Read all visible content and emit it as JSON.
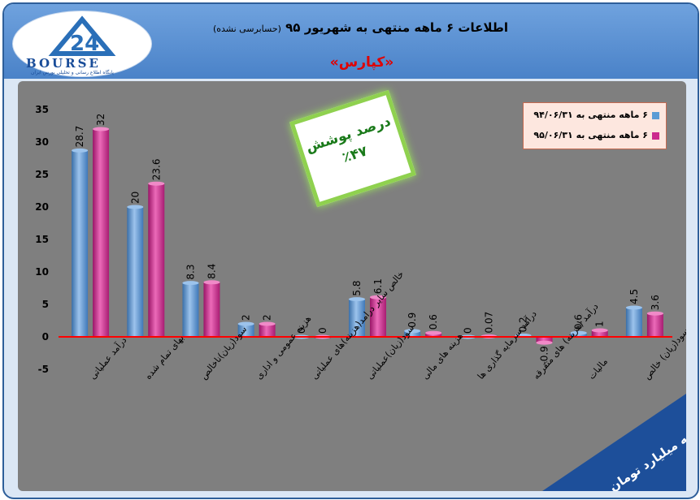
{
  "header": {
    "title": "اطلاعات ۶ ماهه منتهی به شهریور ۹۵",
    "title_note": "(حسابرسی نشده)",
    "subtitle": "«کپارس»"
  },
  "logo": {
    "text": "BOURSE",
    "tagline": "پایگاه اطلاع رسانی و تحلیلی بورس ایران"
  },
  "coverage": {
    "label": "درصد پوشش",
    "value": "٪۴۷"
  },
  "unit_note": "ارقام به میلیارد تومان",
  "colors": {
    "series1": "#5b9bd5",
    "series2": "#cc2a8e",
    "zero_line": "#ff0000",
    "plot_bg": "#7f7f7f"
  },
  "chart_data": {
    "type": "bar",
    "categories": [
      "درآمد عملیاتی",
      "بهای تمام شده",
      "سود(زیان)ناخالص",
      "هزینه عمومی و اداری",
      "خالص سایر درامد(هزینه)های عملیاتی",
      "سود(زیان)عملیاتی",
      "هزینه های مالی",
      "درآمد سرمایه گذاری ها",
      "درآمد (هزینه) های متفرقه",
      "مالیات",
      "سود(زیان) خالص"
    ],
    "series": [
      {
        "name": "۶ ماهه منتهی به ۹۴/۰۶/۳۱",
        "values": [
          28.7,
          20,
          8.3,
          2,
          0,
          5.8,
          0.9,
          0,
          0.2,
          0.6,
          4.5
        ]
      },
      {
        "name": "۶ ماهه منتهی به ۹۵/۰۶/۳۱",
        "values": [
          32,
          23.6,
          8.4,
          2,
          0,
          6.1,
          0.6,
          0.07,
          -0.9,
          1,
          3.6
        ]
      }
    ],
    "y_ticks": [
      -5,
      0,
      5,
      10,
      15,
      20,
      25,
      30,
      35
    ],
    "ylim": [
      -5,
      35
    ],
    "legend": "top-right",
    "grid": false
  }
}
